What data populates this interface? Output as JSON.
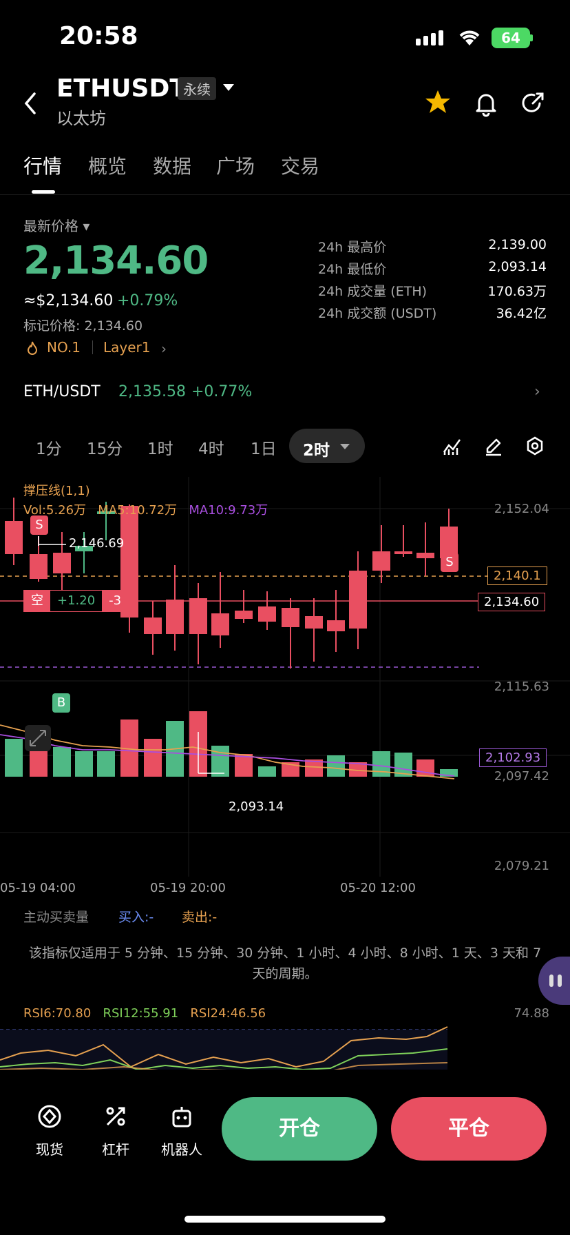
{
  "status": {
    "time": "20:58",
    "battery": "64"
  },
  "header": {
    "symbol": "ETHUSDT",
    "badge": "永续",
    "subname": "以太坊"
  },
  "tabs": [
    "行情",
    "概览",
    "数据",
    "广场",
    "交易"
  ],
  "price": {
    "label": "最新价格",
    "last": "2,134.60",
    "usd": "≈$2,134.60",
    "change": "+0.79%",
    "mark": "标记价格: 2,134.60",
    "rank": "NO.1",
    "tag": "Layer1"
  },
  "stats": [
    {
      "label": "24h 最高价",
      "value": "2,139.00"
    },
    {
      "label": "24h 最低价",
      "value": "2,093.14"
    },
    {
      "label": "24h 成交量 (ETH)",
      "value": "170.63万"
    },
    {
      "label": "24h 成交额 (USDT)",
      "value": "36.42亿"
    }
  ],
  "spot": {
    "pair": "ETH/USDT",
    "price": "2,135.58",
    "change": "+0.77%"
  },
  "timeframes": [
    "1分",
    "15分",
    "1时",
    "4时",
    "1日"
  ],
  "active_timeframe": "2时",
  "chart_legend": {
    "indicator": "撑压线(1,1)",
    "vol": "Vol:5.26万",
    "ma5": "MA5:10.72万",
    "ma10": "MA10:9.73万"
  },
  "chart_labels": {
    "high_marker": "2,146.69",
    "low_marker": "2,093.14",
    "resistance": "2,140.1",
    "last_tag": "2,134.60",
    "support": "2,102.93",
    "position_side": "空",
    "position_pnl": "+1.20",
    "position_qty": "-3",
    "sell_marker": "S",
    "buy_marker": "B"
  },
  "y_axis": [
    "2,152.04",
    "2,115.63",
    "2,097.42",
    "2,079.21"
  ],
  "x_axis": [
    "05-19 04:00",
    "05-19 20:00",
    "05-20 12:00"
  ],
  "order_flow": {
    "title": "主动买卖量",
    "buy": "买入:-",
    "sell": "卖出:-"
  },
  "note": "该指标仅适用于 5 分钟、15 分钟、30 分钟、1 小时、4 小时、8 小时、1 天、3 天和 7 天的周期。",
  "rsi": {
    "rsi6": "RSI6:70.80",
    "rsi12": "RSI12:55.91",
    "rsi24": "RSI24:46.56",
    "max": "74.88"
  },
  "bottom_nav": [
    {
      "label": "现货",
      "icon": "spot-icon"
    },
    {
      "label": "杠杆",
      "icon": "leverage-icon"
    },
    {
      "label": "机器人",
      "icon": "robot-icon"
    }
  ],
  "actions": {
    "open": "开仓",
    "close": "平仓"
  },
  "colors": {
    "up": "#4fb985",
    "down": "#e94f61",
    "accent": "#e6a150"
  }
}
